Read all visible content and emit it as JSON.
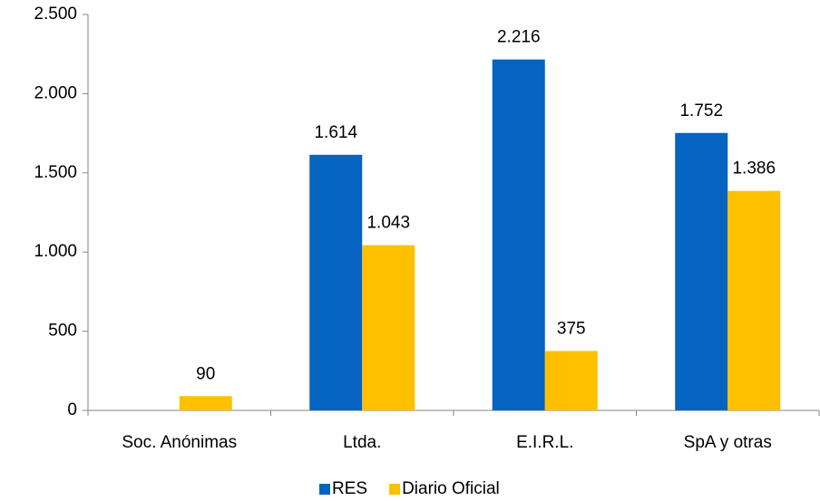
{
  "chart_data": {
    "type": "bar",
    "categories": [
      "Soc. Anónimas",
      "Ltda.",
      "E.I.R.L.",
      "SpA y otras"
    ],
    "series": [
      {
        "name": "RES",
        "color": "#0563c1",
        "values": [
          null,
          1614,
          2216,
          1752
        ],
        "value_labels": [
          null,
          "1.614",
          "2.216",
          "1.752"
        ]
      },
      {
        "name": "Diario Oficial",
        "color": "#ffc000",
        "values": [
          90,
          1043,
          375,
          1386
        ],
        "value_labels": [
          "90",
          "1.043",
          "375",
          "1.386"
        ]
      }
    ],
    "ylim": [
      0,
      2500
    ],
    "yticks": [
      0,
      500,
      {
        "value": 1000,
        "label": "1.000"
      },
      {
        "value": 1500,
        "label": "1.500"
      },
      {
        "value": 2000,
        "label": "2.000"
      },
      {
        "value": 2500,
        "label": "2.500"
      }
    ],
    "grid": false,
    "legend": "bottom"
  }
}
